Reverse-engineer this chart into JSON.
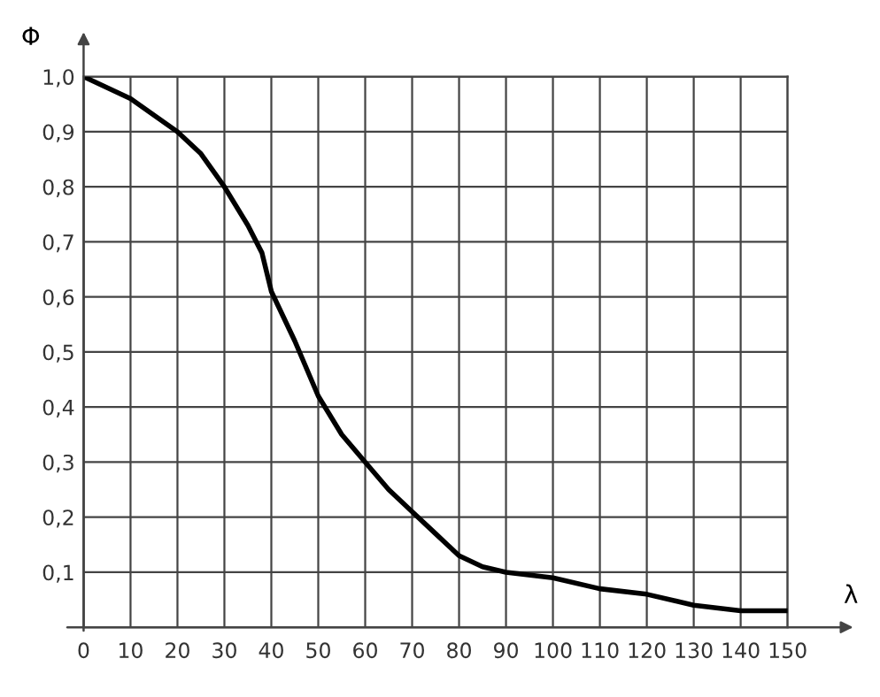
{
  "chart_data": {
    "type": "line",
    "xlabel": "λ",
    "ylabel": "Φ",
    "x": [
      0,
      10,
      20,
      25,
      30,
      35,
      38,
      40,
      45,
      50,
      55,
      60,
      65,
      70,
      75,
      80,
      85,
      90,
      100,
      110,
      120,
      130,
      140,
      150
    ],
    "series": [
      {
        "color": "#000000",
        "values": [
          1.0,
          0.96,
          0.9,
          0.86,
          0.8,
          0.73,
          0.68,
          0.61,
          0.52,
          0.42,
          0.35,
          0.3,
          0.25,
          0.21,
          0.17,
          0.13,
          0.11,
          0.1,
          0.09,
          0.07,
          0.06,
          0.04,
          0.03,
          0.03
        ]
      }
    ],
    "xlim": [
      0,
      150
    ],
    "ylim": [
      0,
      1.0
    ],
    "xticks": [
      0,
      10,
      20,
      30,
      40,
      50,
      60,
      70,
      80,
      90,
      100,
      110,
      120,
      130,
      140,
      150
    ],
    "yticks": [
      {
        "value": 0.1,
        "label": "0,1"
      },
      {
        "value": 0.2,
        "label": "0,2"
      },
      {
        "value": 0.3,
        "label": "0,3"
      },
      {
        "value": 0.4,
        "label": "0,4"
      },
      {
        "value": 0.5,
        "label": "0,5"
      },
      {
        "value": 0.6,
        "label": "0,6"
      },
      {
        "value": 0.7,
        "label": "0,7"
      },
      {
        "value": 0.8,
        "label": "0,8"
      },
      {
        "value": 0.9,
        "label": "0,9"
      },
      {
        "value": 1.0,
        "label": "1,0"
      }
    ],
    "grid": true,
    "marker": "none",
    "line_style": "solid"
  }
}
